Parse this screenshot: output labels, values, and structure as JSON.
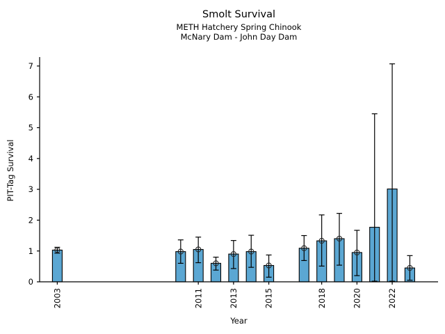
{
  "header": {
    "title": "Smolt Survival",
    "subtitle1": "METH Hatchery Spring Chinook",
    "subtitle2": "McNary Dam - John Day Dam"
  },
  "chart_data": {
    "type": "bar",
    "title": "Smolt Survival",
    "subtitles": [
      "METH Hatchery Spring Chinook",
      "McNary Dam - John Day Dam"
    ],
    "xlabel": "Year",
    "ylabel": "PIT-Tag Survival",
    "xlim": [
      2002,
      2024.6
    ],
    "ylim": [
      0,
      7.2
    ],
    "x_ticks": [
      2003,
      2011,
      2013,
      2015,
      2018,
      2020,
      2022
    ],
    "y_ticks": [
      0,
      1,
      2,
      3,
      4,
      5,
      6,
      7
    ],
    "grid": false,
    "legend": "none",
    "bar_color": "#5BA7D3",
    "bar_edge_color": "#000000",
    "error_bar_color": "#000000",
    "marker_color": "#262626",
    "series": [
      {
        "name": "PIT-Tag Survival",
        "x": [
          2003,
          2010,
          2011,
          2012,
          2013,
          2014,
          2015,
          2017,
          2018,
          2019,
          2020,
          2021,
          2022,
          2023
        ],
        "values": [
          1.03,
          0.98,
          1.05,
          0.6,
          0.9,
          0.98,
          0.53,
          1.09,
          1.33,
          1.4,
          0.95,
          1.77,
          3.01,
          0.45
        ],
        "err_lo": [
          0.93,
          0.6,
          0.62,
          0.38,
          0.43,
          0.47,
          0.15,
          0.69,
          0.51,
          0.54,
          0.2,
          0.02,
          0.02,
          0.05
        ],
        "err_hi": [
          1.12,
          1.36,
          1.45,
          0.8,
          1.34,
          1.51,
          0.87,
          1.5,
          2.17,
          2.22,
          1.67,
          5.45,
          7.07,
          0.85
        ],
        "marker_shown": [
          true,
          true,
          true,
          true,
          true,
          true,
          true,
          true,
          true,
          true,
          true,
          false,
          false,
          true
        ]
      }
    ]
  }
}
